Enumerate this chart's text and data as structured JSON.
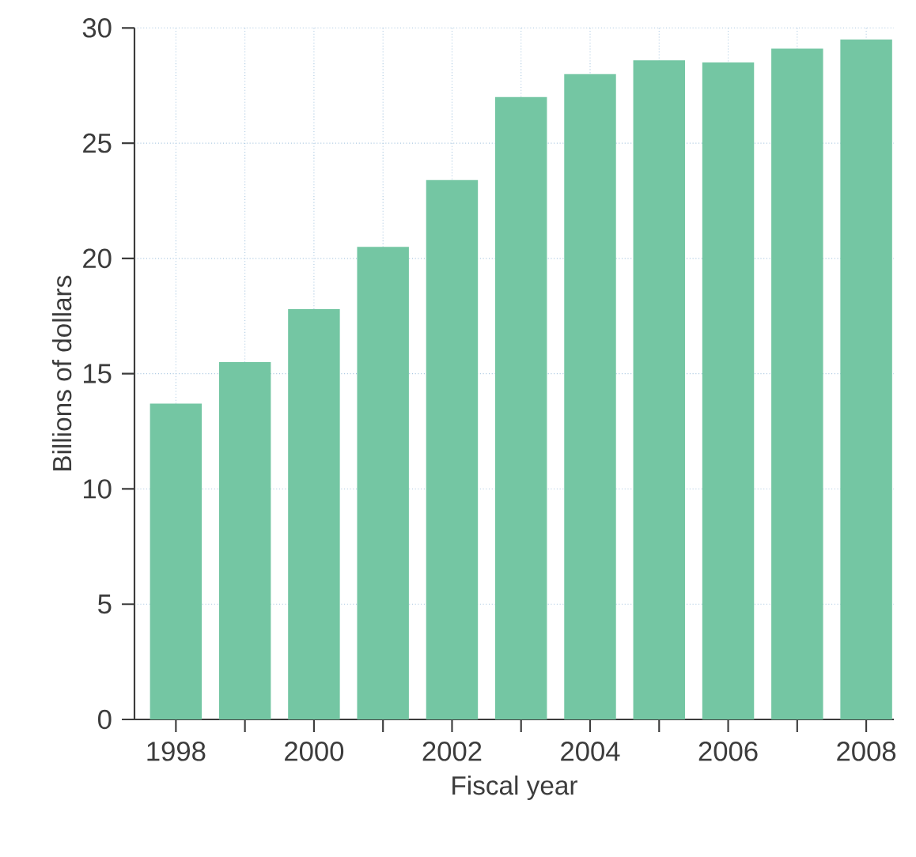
{
  "chart_data": {
    "type": "bar",
    "xlabel": "Fiscal year",
    "ylabel": "Billions of dollars",
    "x": [
      1998,
      1999,
      2000,
      2001,
      2002,
      2003,
      2004,
      2005,
      2006,
      2007,
      2008
    ],
    "values": [
      13.7,
      15.5,
      17.8,
      20.5,
      23.4,
      27.0,
      28.0,
      28.6,
      28.5,
      29.1,
      29.5
    ],
    "color": "#74c6a3",
    "xlim": [
      1997.4,
      2008.4
    ],
    "ylim": [
      0,
      30
    ],
    "xticks": [
      1998,
      {
        "value": 1999,
        "label": null
      },
      2000,
      {
        "value": 2001,
        "label": null
      },
      2002,
      {
        "value": 2003,
        "label": null
      },
      2004,
      {
        "value": 2005,
        "label": null
      },
      2006,
      {
        "value": 2007,
        "label": null
      },
      2008
    ],
    "yticks": [
      0,
      5,
      10,
      15,
      20,
      25,
      30
    ],
    "grid": true
  }
}
